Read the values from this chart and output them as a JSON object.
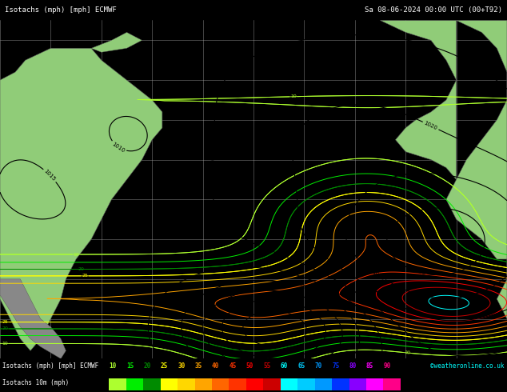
{
  "title_left": "Isotachs (mph) [mph] ECMWF",
  "title_right": "Sa 08-06-2024 00:00 UTC (00+T92)",
  "legend_label_top": "Isotachs (mph) [mph] ECMWF",
  "legend_label_bottom": "Isotachs 10m (mph)",
  "legend_values": [
    10,
    15,
    20,
    25,
    30,
    35,
    40,
    45,
    50,
    55,
    60,
    65,
    70,
    75,
    80,
    85,
    90
  ],
  "legend_colors": [
    "#adff2f",
    "#00ee00",
    "#008b00",
    "#ffff00",
    "#ffd700",
    "#ffa500",
    "#ff6600",
    "#ff3300",
    "#ff0000",
    "#cc0000",
    "#00ffff",
    "#00ccff",
    "#0099ff",
    "#0033ff",
    "#8800ff",
    "#ff00ff",
    "#ff0088"
  ],
  "copyright": "©weatheronline.co.uk",
  "land_color": "#b8dba0",
  "ocean_color": "#d8d8d8",
  "land_color_green": "#90cc78",
  "grid_color": "#aaaaaa",
  "isobar_color": "#000000",
  "figsize": [
    6.34,
    4.9
  ],
  "dpi": 100
}
